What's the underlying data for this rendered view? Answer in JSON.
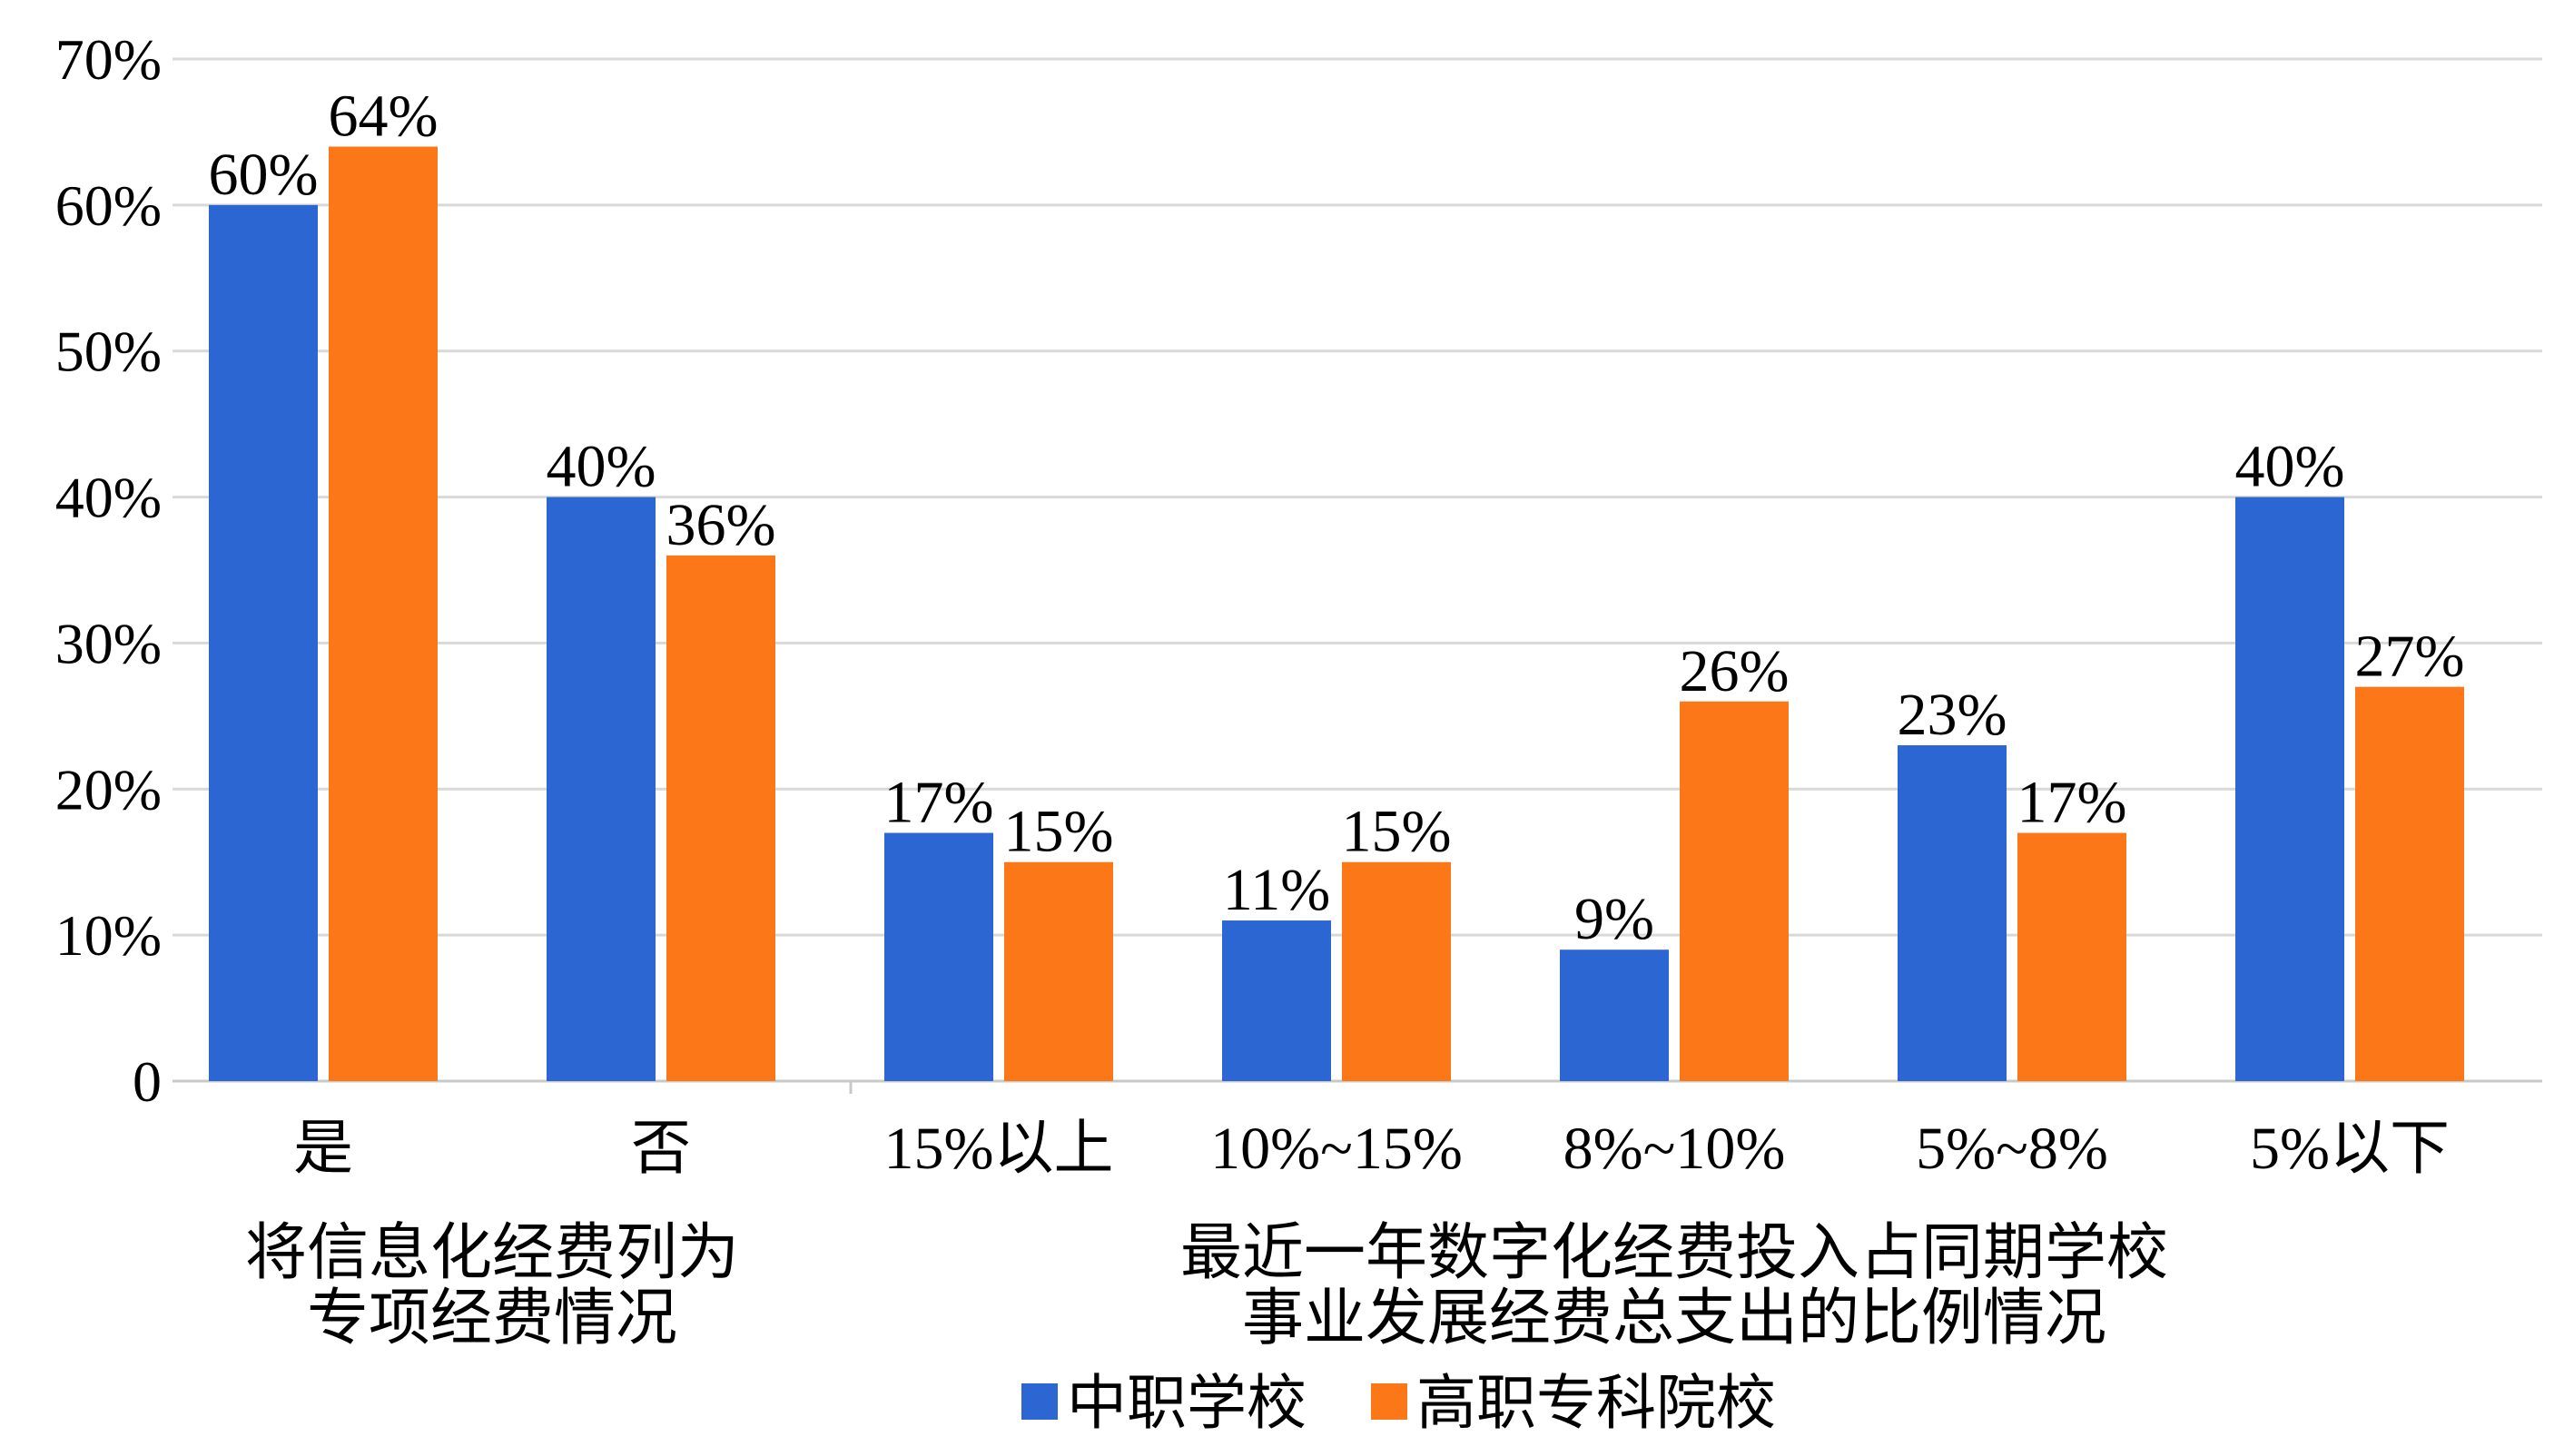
{
  "chart_data": {
    "type": "bar",
    "categories": [
      "是",
      "否",
      "15%以上",
      "10%~15%",
      "8%~10%",
      "5%~8%",
      "5%以下"
    ],
    "series": [
      {
        "name": "中职学校",
        "color": "#2b66d2",
        "values": [
          60,
          40,
          17,
          11,
          9,
          23,
          40
        ],
        "labels": [
          "60%",
          "40%",
          "17%",
          "11%",
          "9%",
          "23%",
          "40%"
        ]
      },
      {
        "name": "高职专科院校",
        "color": "#fb7718",
        "values": [
          64,
          36,
          15,
          15,
          26,
          17,
          27
        ],
        "labels": [
          "64%",
          "36%",
          "15%",
          "15%",
          "26%",
          "17%",
          "27%"
        ]
      }
    ],
    "ylim": [
      0,
      70
    ],
    "yticks": [
      0,
      10,
      20,
      30,
      40,
      50,
      60,
      70
    ],
    "ytick_labels": [
      "0",
      "10%",
      "20%",
      "30%",
      "40%",
      "50%",
      "60%",
      "70%"
    ],
    "grid": true,
    "groups": [
      {
        "lines": [
          "将信息化经费列为",
          "专项经费情况"
        ],
        "categories": [
          0,
          1
        ]
      },
      {
        "lines": [
          "最近一年数字化经费投入占同期学校",
          "事业发展经费总支出的比例情况"
        ],
        "categories": [
          2,
          3,
          4,
          5,
          6
        ]
      }
    ],
    "legend_position": "bottom"
  }
}
